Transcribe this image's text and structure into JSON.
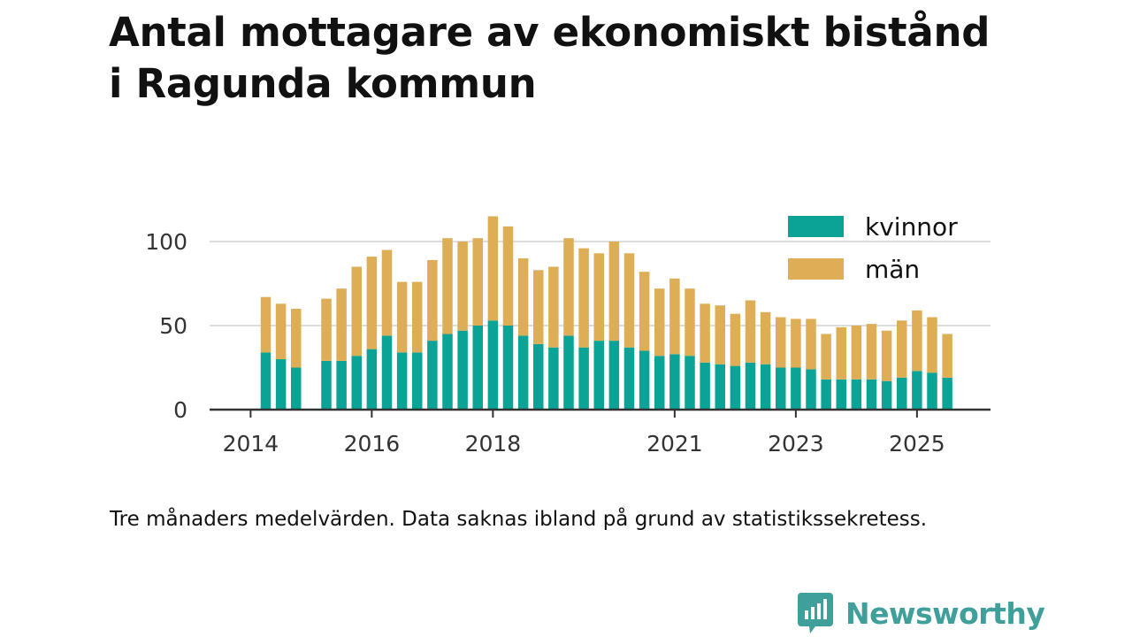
{
  "title": {
    "line1": "Antal mottagare av ekonomiskt bistånd",
    "line2": "i Ragunda kommun"
  },
  "caption": "Tre månaders medelvärden. Data saknas ibland på grund av statistikssekretess.",
  "brand": {
    "name": "Newsworthy",
    "icon": "newsworthy-logo-icon"
  },
  "colors": {
    "kvinnor": "#0aa396",
    "man": "#deae57",
    "grid": "#dddddd",
    "axis": "#333333",
    "brand": "#3f9f9b"
  },
  "chart_data": {
    "type": "bar",
    "stacked": true,
    "title": "Antal mottagare av ekonomiskt bistånd i Ragunda kommun",
    "xlabel": "",
    "ylabel": "",
    "ylim": [
      0,
      120
    ],
    "yticks": [
      0,
      50,
      100
    ],
    "xticks": [
      {
        "label": "2014",
        "t": 2014.0
      },
      {
        "label": "2016",
        "t": 2016.0
      },
      {
        "label": "2018",
        "t": 2018.0
      },
      {
        "label": "2021",
        "t": 2021.0
      },
      {
        "label": "2023",
        "t": 2023.0
      },
      {
        "label": "2025",
        "t": 2025.0
      }
    ],
    "grid": true,
    "legend": {
      "position": "top-right",
      "entries": [
        "kvinnor",
        "män"
      ]
    },
    "t": [
      2014.25,
      2014.5,
      2014.75,
      2015.25,
      2015.5,
      2015.75,
      2016.0,
      2016.25,
      2016.5,
      2016.75,
      2017.0,
      2017.25,
      2017.5,
      2017.75,
      2018.0,
      2018.25,
      2018.5,
      2018.75,
      2019.0,
      2019.25,
      2019.5,
      2019.75,
      2020.0,
      2020.25,
      2020.5,
      2020.75,
      2021.0,
      2021.25,
      2021.5,
      2021.75,
      2022.0,
      2022.25,
      2022.5,
      2022.75,
      2023.0,
      2023.25,
      2023.5,
      2023.75,
      2024.0,
      2024.25,
      2024.5,
      2024.75,
      2025.0,
      2025.25,
      2025.5
    ],
    "series": [
      {
        "name": "kvinnor",
        "values": [
          34,
          30,
          25,
          29,
          29,
          32,
          36,
          44,
          34,
          34,
          41,
          45,
          47,
          50,
          53,
          50,
          44,
          39,
          37,
          44,
          37,
          41,
          41,
          37,
          35,
          32,
          33,
          32,
          28,
          27,
          26,
          28,
          27,
          25,
          25,
          24,
          18,
          18,
          18,
          18,
          17,
          19,
          23,
          22,
          19
        ]
      },
      {
        "name": "män",
        "values": [
          33,
          33,
          35,
          37,
          43,
          53,
          55,
          51,
          42,
          42,
          48,
          57,
          53,
          52,
          62,
          59,
          46,
          44,
          48,
          58,
          59,
          52,
          59,
          56,
          47,
          40,
          45,
          40,
          35,
          35,
          31,
          37,
          31,
          30,
          29,
          30,
          27,
          31,
          32,
          33,
          30,
          34,
          36,
          33,
          26
        ]
      }
    ]
  }
}
